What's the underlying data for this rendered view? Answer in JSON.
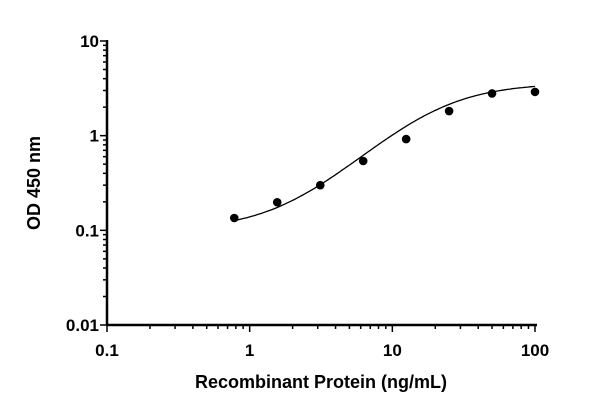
{
  "chart_data": {
    "type": "scatter",
    "title": "",
    "xlabel": "Recombinant Protein (ng/mL)",
    "ylabel": "OD 450 nm",
    "xscale": "log",
    "yscale": "log",
    "xlim": [
      0.1,
      100
    ],
    "ylim": [
      0.01,
      10
    ],
    "xticks": [
      "0.1",
      "1",
      "10",
      "100"
    ],
    "yticks": [
      "0.01",
      "0.1",
      "1",
      "10"
    ],
    "grid": false,
    "legend": "none",
    "fitted_curve": true,
    "series": [
      {
        "x": [
          0.78,
          1.56,
          3.125,
          6.25,
          12.5,
          25,
          50,
          100
        ],
        "y": [
          0.135,
          0.198,
          0.3,
          0.54,
          0.92,
          1.82,
          2.79,
          2.9
        ]
      }
    ],
    "colors": {
      "points": "#000000",
      "curve": "#000000"
    }
  }
}
